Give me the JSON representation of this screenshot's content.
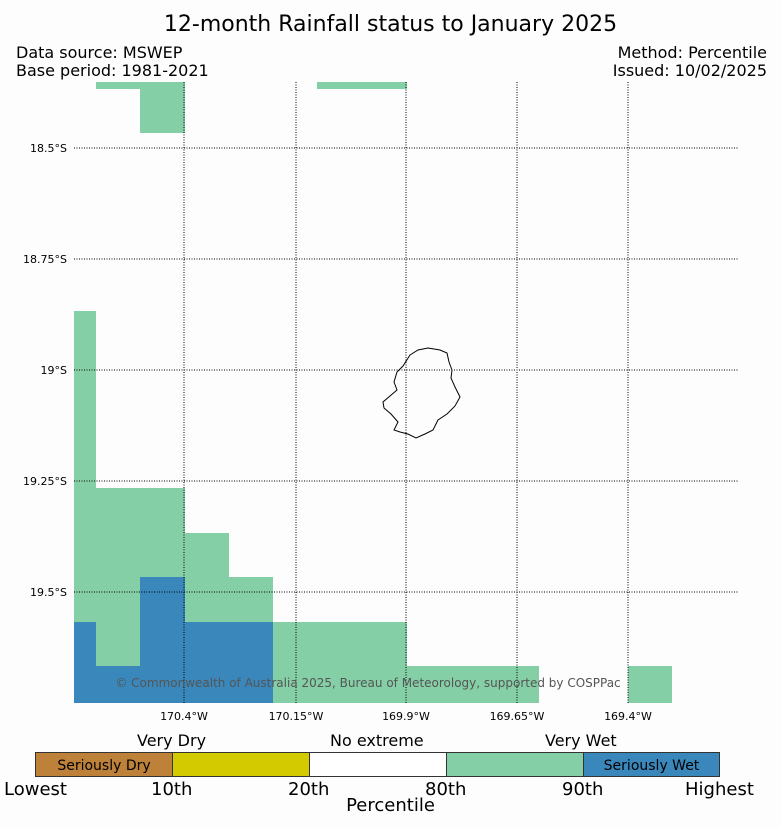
{
  "header": {
    "title": "12-month Rainfall status to January 2025",
    "data_source": "Data source: MSWEP",
    "base_period": "Base period: 1981-2021",
    "method": "Method: Percentile",
    "issued": "Issued: 10/02/2025"
  },
  "map": {
    "lat_labels": [
      "18.5°S",
      "18.75°S",
      "19°S",
      "19.25°S",
      "19.5°S"
    ],
    "lon_labels": [
      "170.4°W",
      "170.15°W",
      "169.9°W",
      "169.65°W",
      "169.4°W"
    ],
    "copyright": "© Commonwealth of Australia 2025, Bureau of Meteorology, supported by COSPPac",
    "colors": {
      "very_wet": "#84cfa6",
      "seriously_wet": "#3a87bb",
      "island_outline": "#000000"
    }
  },
  "legend": {
    "categories": [
      "Very Dry",
      "No extreme",
      "Very Wet"
    ],
    "bins": [
      {
        "label": "Seriously Dry",
        "color": "#bd813a"
      },
      {
        "label": "",
        "color": "#d3ca00"
      },
      {
        "label": "",
        "color": "#ffffff"
      },
      {
        "label": "",
        "color": "#84cfa6"
      },
      {
        "label": "Seriously Wet",
        "color": "#3a87bb"
      }
    ],
    "ticks": [
      "Lowest",
      "10th",
      "20th",
      "80th",
      "90th",
      "Highest"
    ],
    "axis_title": "Percentile"
  }
}
